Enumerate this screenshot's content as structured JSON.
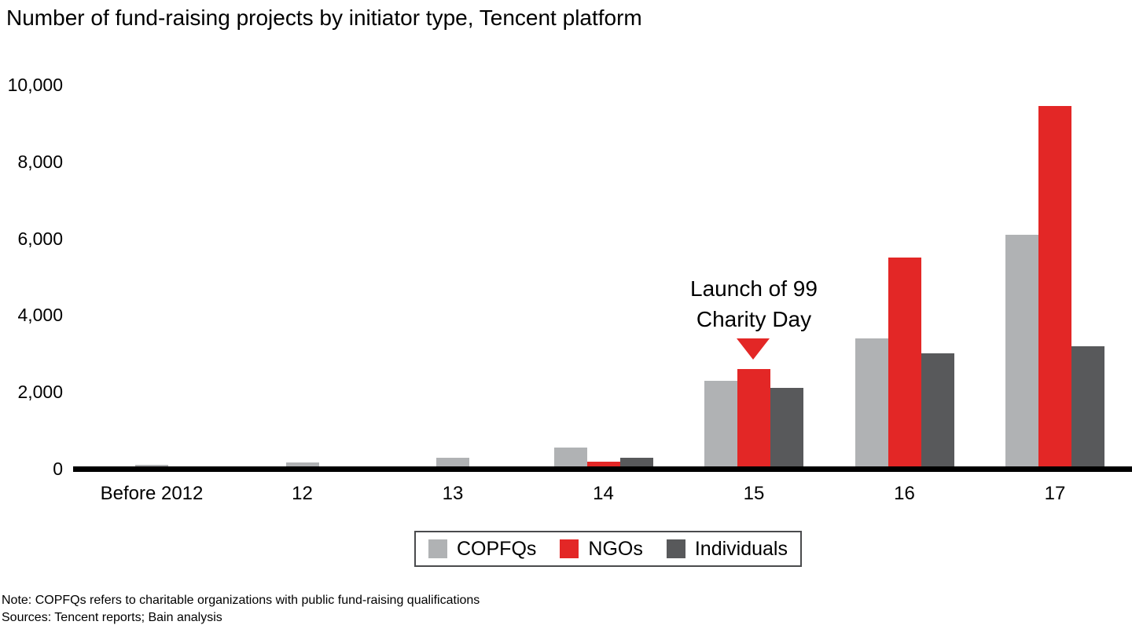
{
  "title": "Number of fund-raising projects by initiator type, Tencent platform",
  "annotation": {
    "lines": [
      "Launch of 99",
      "Charity Day"
    ],
    "target_category": "15",
    "target_series": "NGOs",
    "arrow_color": "#e32726"
  },
  "footnotes": {
    "note": "Note: COPFQs refers to charitable organizations with public fund-raising qualifications",
    "sources": "Sources: Tencent reports; Bain analysis"
  },
  "colors": {
    "copfqs": "#b0b2b4",
    "ngos": "#e32726",
    "individuals": "#58595b",
    "axis": "#000000"
  },
  "chart_data": {
    "type": "bar",
    "title": "Number of fund-raising projects by initiator type, Tencent platform",
    "categories": [
      "Before 2012",
      "12",
      "13",
      "14",
      "15",
      "16",
      "17"
    ],
    "series": [
      {
        "name": "COPFQs",
        "color": "#b0b2b4",
        "values": [
          100,
          170,
          290,
          550,
          2300,
          3400,
          6100
        ]
      },
      {
        "name": "NGOs",
        "color": "#e32726",
        "values": [
          0,
          0,
          0,
          180,
          2600,
          5500,
          9450
        ]
      },
      {
        "name": "Individuals",
        "color": "#58595b",
        "values": [
          0,
          0,
          0,
          280,
          2100,
          3000,
          3200
        ]
      }
    ],
    "xlabel": "",
    "ylabel": "",
    "ylim": [
      0,
      10000
    ],
    "yticks": [
      0,
      2000,
      4000,
      6000,
      8000,
      10000
    ],
    "ytick_labels": [
      "0",
      "2,000",
      "4,000",
      "6,000",
      "8,000",
      "10,000"
    ],
    "grid": false,
    "legend_position": "bottom",
    "annotation": "Launch of 99 Charity Day (arrow points to NGOs bar of year 15)"
  }
}
